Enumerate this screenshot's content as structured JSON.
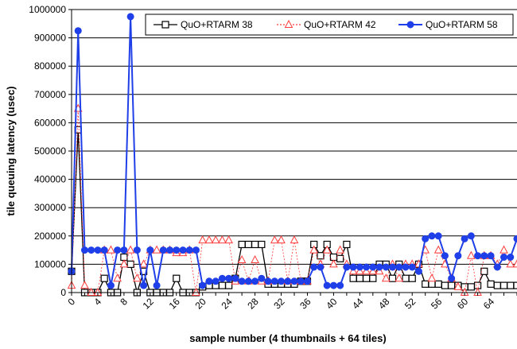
{
  "chart_data": {
    "type": "line",
    "title": "",
    "xlabel": "sample number (4 thumbnails + 64 tiles)",
    "ylabel": "tile queuing latency (usec)",
    "ylim": [
      0,
      1000000
    ],
    "xlim": [
      0,
      68
    ],
    "x_ticks": [
      "0",
      "4",
      "8",
      "12",
      "16",
      "20",
      "24",
      "28",
      "32",
      "36",
      "40",
      "44",
      "48",
      "52",
      "56",
      "60",
      "64"
    ],
    "y_ticks": [
      "0",
      "100000",
      "200000",
      "300000",
      "400000",
      "500000",
      "600000",
      "700000",
      "800000",
      "900000",
      "1000000"
    ],
    "grid": true,
    "legend_position": "top-right",
    "series": [
      {
        "name": "QuO+RTARM 38",
        "color": "#000000",
        "marker": "square",
        "values": [
          75000,
          575000,
          0,
          0,
          0,
          50000,
          0,
          0,
          125000,
          100000,
          0,
          75000,
          0,
          0,
          0,
          0,
          50000,
          0,
          0,
          0,
          20000,
          25000,
          25000,
          25000,
          25000,
          50000,
          170000,
          170000,
          170000,
          170000,
          30000,
          30000,
          30000,
          30000,
          30000,
          40000,
          40000,
          170000,
          130000,
          170000,
          125000,
          120000,
          170000,
          50000,
          50000,
          50000,
          50000,
          100000,
          100000,
          50000,
          100000,
          50000,
          50000,
          100000,
          30000,
          30000,
          30000,
          25000,
          25000,
          25000,
          20000,
          20000,
          25000,
          75000,
          30000,
          25000,
          25000,
          25000,
          25000
        ]
      },
      {
        "name": "QuO+RTARM 42",
        "color": "#ff3b3b",
        "marker": "triangle",
        "values": [
          25000,
          650000,
          25000,
          0,
          0,
          150000,
          150000,
          50000,
          100000,
          150000,
          50000,
          100000,
          150000,
          150000,
          150000,
          150000,
          140000,
          140000,
          150000,
          0,
          185000,
          185000,
          185000,
          185000,
          185000,
          40000,
          115000,
          40000,
          115000,
          40000,
          40000,
          185000,
          185000,
          40000,
          185000,
          40000,
          40000,
          150000,
          100000,
          150000,
          100000,
          150000,
          100000,
          75000,
          75000,
          75000,
          75000,
          75000,
          50000,
          100000,
          50000,
          100000,
          100000,
          100000,
          150000,
          50000,
          150000,
          100000,
          50000,
          20000,
          0,
          130000,
          0,
          130000,
          130000,
          100000,
          150000,
          100000,
          100000
        ]
      },
      {
        "name": "QuO+RTARM 58",
        "color": "#1f3fe8",
        "marker": "circle",
        "values": [
          75000,
          925000,
          150000,
          150000,
          150000,
          150000,
          25000,
          150000,
          150000,
          975000,
          150000,
          25000,
          150000,
          25000,
          150000,
          150000,
          150000,
          150000,
          150000,
          150000,
          25000,
          40000,
          40000,
          50000,
          50000,
          50000,
          40000,
          40000,
          40000,
          50000,
          40000,
          40000,
          40000,
          40000,
          40000,
          40000,
          40000,
          90000,
          90000,
          25000,
          25000,
          25000,
          90000,
          90000,
          90000,
          90000,
          90000,
          90000,
          90000,
          90000,
          90000,
          90000,
          90000,
          75000,
          190000,
          200000,
          200000,
          130000,
          50000,
          130000,
          190000,
          200000,
          130000,
          130000,
          130000,
          90000,
          125000,
          125000,
          190000
        ]
      }
    ]
  }
}
